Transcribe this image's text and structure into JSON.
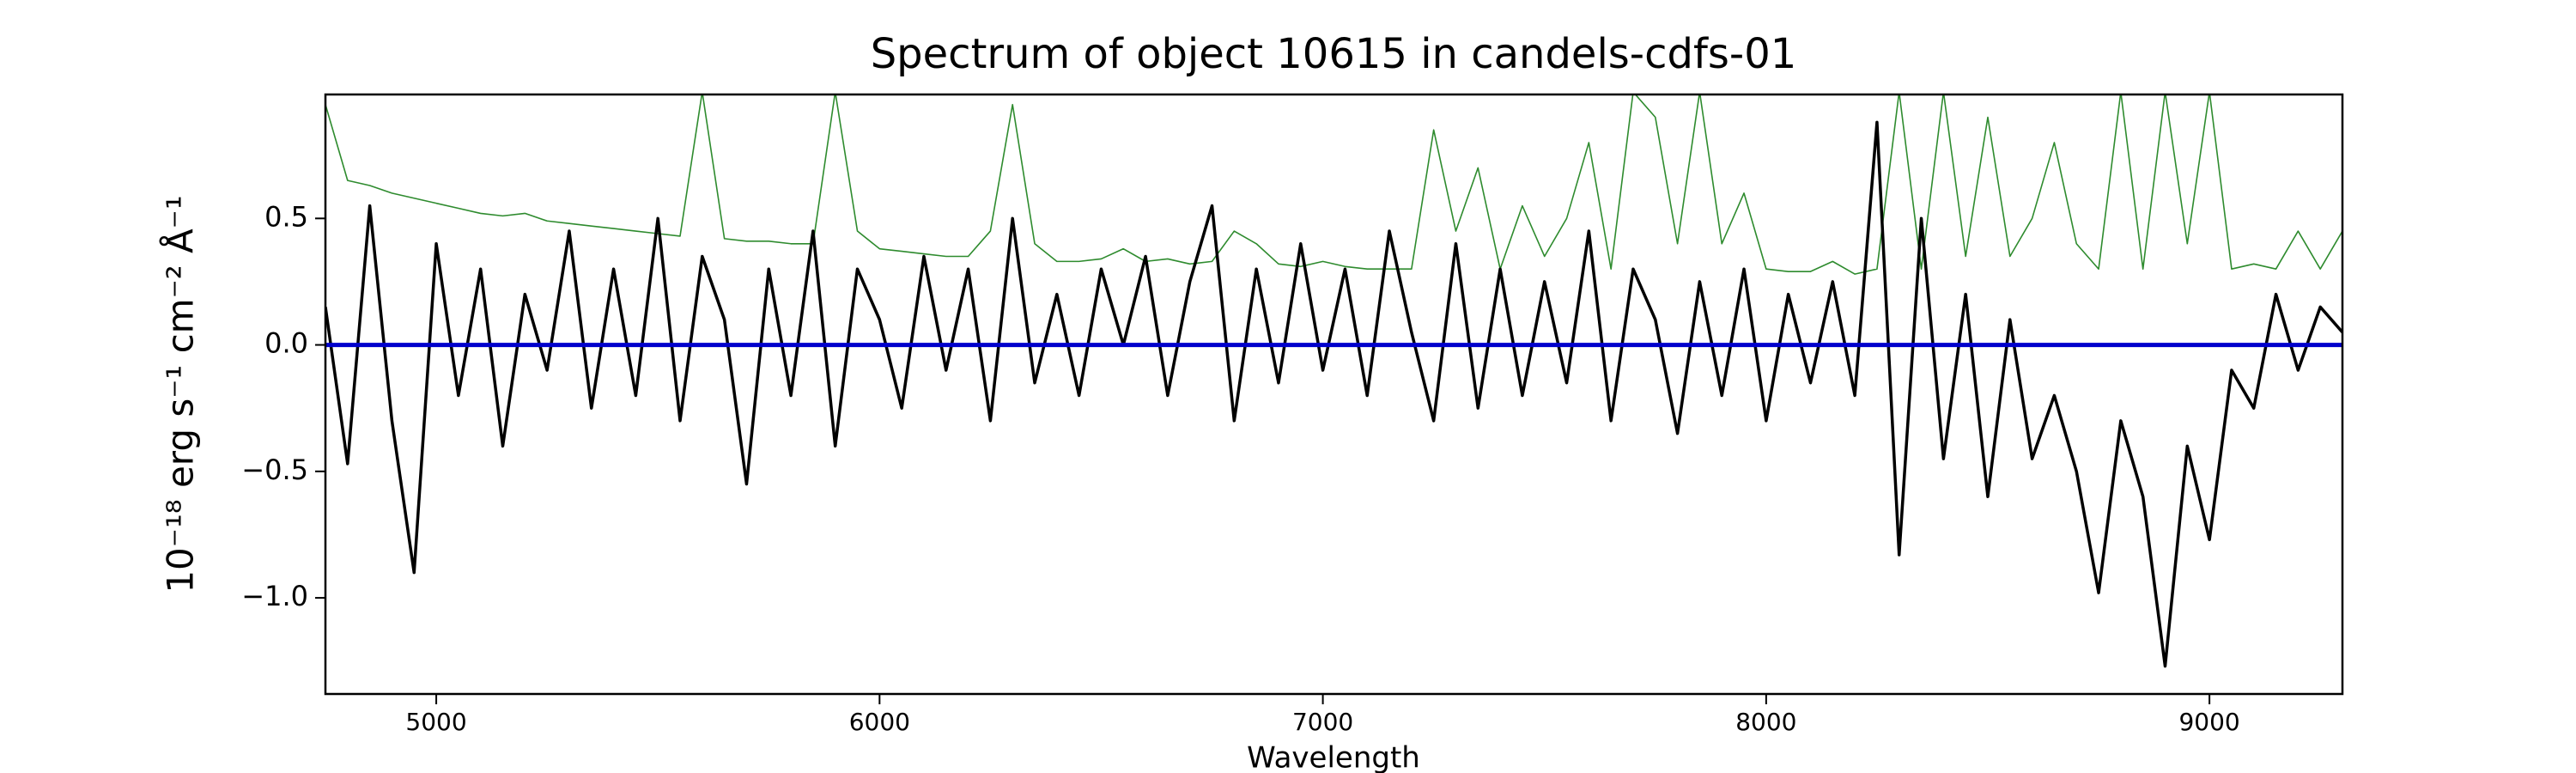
{
  "chart_data": {
    "type": "line",
    "title": "Spectrum of object 10615 in candels-cdfs-01",
    "xlabel": "Wavelength",
    "ylabel": "10⁻¹⁸ erg s⁻¹ cm⁻² Å⁻¹",
    "x": [
      4750,
      4800,
      4850,
      4900,
      4950,
      5000,
      5050,
      5100,
      5150,
      5200,
      5250,
      5300,
      5350,
      5400,
      5450,
      5500,
      5550,
      5600,
      5650,
      5700,
      5750,
      5800,
      5850,
      5900,
      5950,
      6000,
      6050,
      6100,
      6150,
      6200,
      6250,
      6300,
      6350,
      6400,
      6450,
      6500,
      6550,
      6600,
      6650,
      6700,
      6750,
      6800,
      6850,
      6900,
      6950,
      7000,
      7050,
      7100,
      7150,
      7200,
      7250,
      7300,
      7350,
      7400,
      7450,
      7500,
      7550,
      7600,
      7650,
      7700,
      7750,
      7800,
      7850,
      7900,
      7950,
      8000,
      8050,
      8100,
      8150,
      8200,
      8250,
      8300,
      8350,
      8400,
      8450,
      8500,
      8550,
      8600,
      8650,
      8700,
      8750,
      8800,
      8850,
      8900,
      8950,
      9000,
      9050,
      9100,
      9150,
      9200,
      9250,
      9300
    ],
    "series": [
      {
        "color": "#2e8b2e",
        "width": 1.6,
        "values": [
          0.95,
          0.65,
          0.63,
          0.6,
          0.58,
          0.56,
          0.54,
          0.52,
          0.51,
          0.52,
          0.49,
          0.48,
          0.47,
          0.46,
          0.45,
          0.44,
          0.43,
          1.0,
          0.42,
          0.41,
          0.41,
          0.4,
          0.4,
          1.0,
          0.45,
          0.38,
          0.37,
          0.36,
          0.35,
          0.35,
          0.45,
          0.95,
          0.4,
          0.33,
          0.33,
          0.34,
          0.38,
          0.33,
          0.34,
          0.32,
          0.33,
          0.45,
          0.4,
          0.32,
          0.31,
          0.33,
          0.31,
          0.3,
          0.3,
          0.3,
          0.85,
          0.45,
          0.7,
          0.3,
          0.55,
          0.35,
          0.5,
          0.8,
          0.3,
          1.0,
          0.9,
          0.4,
          1.0,
          0.4,
          0.6,
          0.3,
          0.29,
          0.29,
          0.33,
          0.28,
          0.3,
          1.0,
          0.3,
          1.0,
          0.35,
          0.9,
          0.35,
          0.5,
          0.8,
          0.4,
          0.3,
          1.0,
          0.3,
          1.0,
          0.4,
          1.0,
          0.3,
          0.32,
          0.3,
          0.45,
          0.3,
          0.45
        ]
      },
      {
        "color": "#000000",
        "width": 3.5,
        "values": [
          0.15,
          -0.47,
          0.55,
          -0.3,
          -0.9,
          0.4,
          -0.2,
          0.3,
          -0.4,
          0.2,
          -0.1,
          0.45,
          -0.25,
          0.3,
          -0.2,
          0.5,
          -0.3,
          0.35,
          0.1,
          -0.55,
          0.3,
          -0.2,
          0.45,
          -0.4,
          0.3,
          0.1,
          -0.25,
          0.35,
          -0.1,
          0.3,
          -0.3,
          0.5,
          -0.15,
          0.2,
          -0.2,
          0.3,
          0.0,
          0.35,
          -0.2,
          0.25,
          0.55,
          -0.3,
          0.3,
          -0.15,
          0.4,
          -0.1,
          0.3,
          -0.2,
          0.45,
          0.05,
          -0.3,
          0.4,
          -0.25,
          0.3,
          -0.2,
          0.25,
          -0.15,
          0.45,
          -0.3,
          0.3,
          0.1,
          -0.35,
          0.25,
          -0.2,
          0.3,
          -0.3,
          0.2,
          -0.15,
          0.25,
          -0.2,
          0.88,
          -0.83,
          0.5,
          -0.45,
          0.2,
          -0.6,
          0.1,
          -0.45,
          -0.2,
          -0.5,
          -0.98,
          -0.3,
          -0.6,
          -1.27,
          -0.4,
          -0.77,
          -0.1,
          -0.25,
          0.2,
          -0.1,
          0.15,
          0.05
        ]
      },
      {
        "color": "#0000cc",
        "width": 5,
        "values": [
          0,
          0,
          0,
          0,
          0,
          0,
          0,
          0,
          0,
          0,
          0,
          0,
          0,
          0,
          0,
          0,
          0,
          0,
          0,
          0,
          0,
          0,
          0,
          0,
          0,
          0,
          0,
          0,
          0,
          0,
          0,
          0,
          0,
          0,
          0,
          0,
          0,
          0,
          0,
          0,
          0,
          0,
          0,
          0,
          0,
          0,
          0,
          0,
          0,
          0,
          0,
          0,
          0,
          0,
          0,
          0,
          0,
          0,
          0,
          0,
          0,
          0,
          0,
          0,
          0,
          0,
          0,
          0,
          0,
          0,
          0,
          0,
          0,
          0,
          0,
          0,
          0,
          0,
          0,
          0,
          0,
          0,
          0,
          0,
          0,
          0,
          0,
          0,
          0,
          0,
          0,
          0
        ]
      }
    ],
    "xlim": [
      4750,
      9300
    ],
    "ylim": [
      -1.38,
      0.99
    ],
    "xticks": [
      5000,
      6000,
      7000,
      8000,
      9000
    ],
    "yticks": [
      {
        "value": -1.0,
        "label": "−1.0"
      },
      {
        "value": -0.5,
        "label": "−0.5"
      },
      {
        "value": 0,
        "label": "0.0"
      },
      0.5
    ]
  }
}
